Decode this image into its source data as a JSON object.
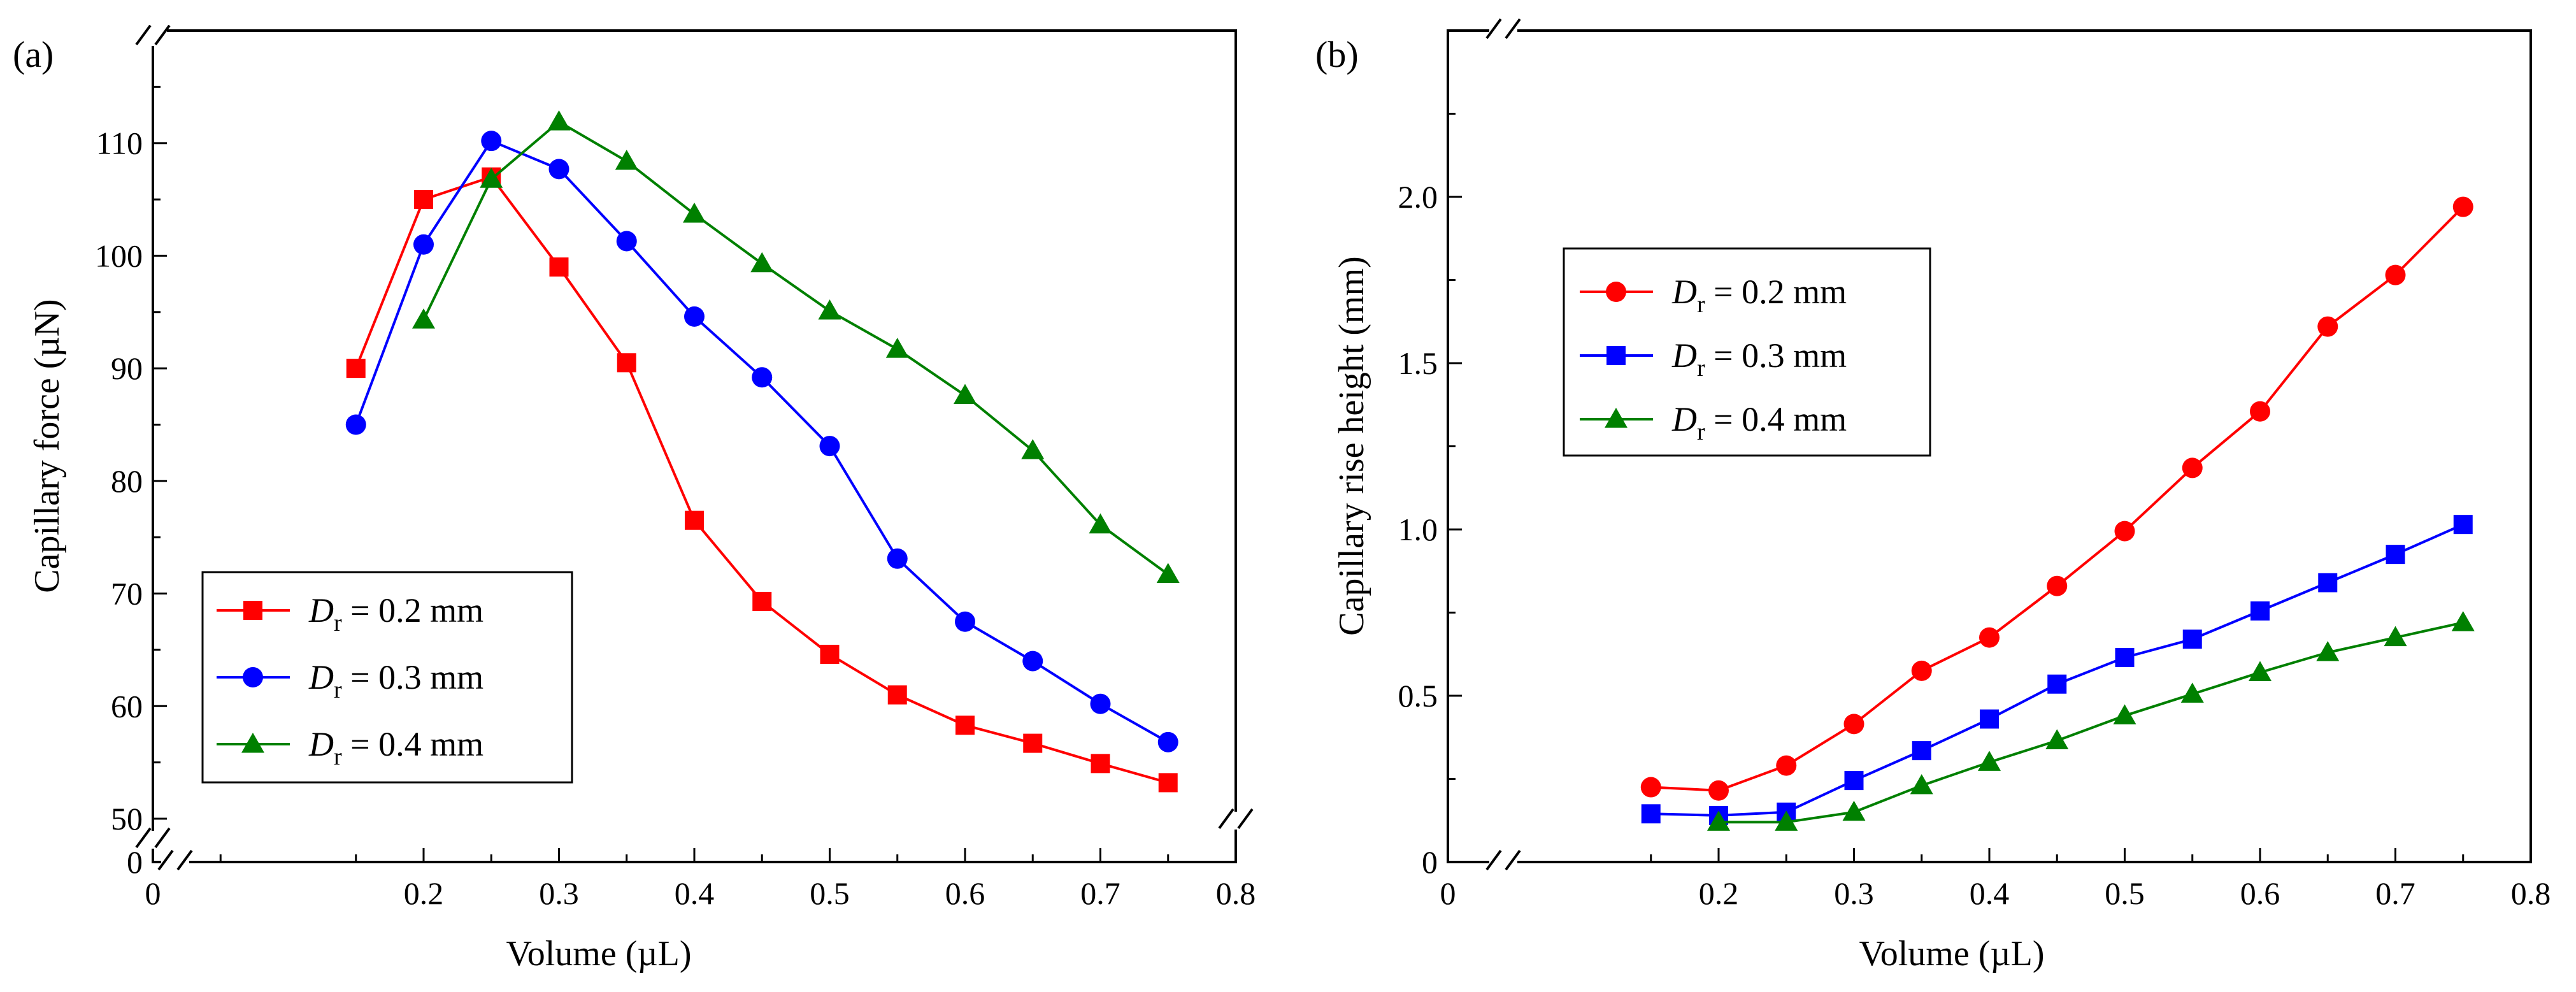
{
  "chart_data": [
    {
      "panel_label": "(a)",
      "type": "line",
      "xlabel": "Volume (µL)",
      "ylabel": "Capillary force (µN)",
      "xlim": [
        0,
        0.8
      ],
      "ylim_broken": {
        "lower_tick": 0,
        "range": [
          50,
          120
        ]
      },
      "x_ticks": [
        0,
        0.2,
        0.3,
        0.4,
        0.5,
        0.6,
        0.7,
        0.8
      ],
      "x_tick_labels": [
        "0",
        "0.2",
        "0.3",
        "0.4",
        "0.5",
        "0.6",
        "0.7",
        "0.8"
      ],
      "y_ticks": [
        0,
        50,
        60,
        70,
        80,
        90,
        100,
        110
      ],
      "y_tick_labels": [
        "0",
        "50",
        "60",
        "70",
        "80",
        "90",
        "100",
        "110"
      ],
      "legend_position": "bottom-left",
      "series": [
        {
          "name": "D_r = 0.2 mm",
          "italic": "D",
          "sub": "r",
          "rest": " = 0.2 mm",
          "color": "#ff0000",
          "marker": "square",
          "x": [
            0.15,
            0.2,
            0.25,
            0.3,
            0.35,
            0.4,
            0.45,
            0.5,
            0.55,
            0.6,
            0.65,
            0.7,
            0.75
          ],
          "y": [
            90.0,
            105.0,
            107.0,
            99.0,
            90.5,
            76.5,
            69.3,
            64.6,
            61.0,
            58.3,
            56.7,
            54.9,
            53.2
          ]
        },
        {
          "name": "D_r = 0.3 mm",
          "italic": "D",
          "sub": "r",
          "rest": " = 0.3 mm",
          "color": "#0000ff",
          "marker": "circle",
          "x": [
            0.15,
            0.2,
            0.25,
            0.3,
            0.35,
            0.4,
            0.45,
            0.5,
            0.55,
            0.6,
            0.65,
            0.7,
            0.75
          ],
          "y": [
            85.0,
            101.0,
            110.2,
            107.7,
            101.3,
            94.6,
            89.2,
            83.1,
            73.1,
            67.5,
            64.0,
            60.2,
            56.8
          ]
        },
        {
          "name": "D_r = 0.4 mm",
          "italic": "D",
          "sub": "r",
          "rest": " = 0.4 mm",
          "color": "#008000",
          "marker": "triangle",
          "x": [
            0.2,
            0.25,
            0.3,
            0.35,
            0.4,
            0.45,
            0.5,
            0.55,
            0.6,
            0.65,
            0.7,
            0.75
          ],
          "y": [
            94.3,
            106.8,
            111.9,
            108.4,
            103.7,
            99.3,
            95.1,
            91.7,
            87.6,
            82.7,
            76.1,
            71.7
          ]
        }
      ]
    },
    {
      "panel_label": "(b)",
      "type": "line",
      "xlabel": "Volume (µL)",
      "ylabel": "Capillary rise height (mm)",
      "xlim": [
        0,
        0.8
      ],
      "ylim": [
        0,
        2.5
      ],
      "x_ticks": [
        0,
        0.2,
        0.3,
        0.4,
        0.5,
        0.6,
        0.7,
        0.8
      ],
      "x_tick_labels": [
        "0",
        "0.2",
        "0.3",
        "0.4",
        "0.5",
        "0.6",
        "0.7",
        "0.8"
      ],
      "y_ticks": [
        0,
        0.5,
        1.0,
        1.5,
        2.0
      ],
      "y_tick_labels": [
        "0",
        "0.5",
        "1.0",
        "1.5",
        "2.0"
      ],
      "legend_position": "top-left",
      "series": [
        {
          "name": "D_r = 0.2 mm",
          "italic": "D",
          "sub": "r",
          "rest": " = 0.2 mm",
          "color": "#ff0000",
          "marker": "circle",
          "x": [
            0.15,
            0.2,
            0.25,
            0.3,
            0.35,
            0.4,
            0.45,
            0.5,
            0.55,
            0.6,
            0.65,
            0.7,
            0.75
          ],
          "y": [
            0.225,
            0.215,
            0.29,
            0.415,
            0.575,
            0.675,
            0.83,
            0.995,
            1.185,
            1.355,
            1.61,
            1.765,
            1.97
          ]
        },
        {
          "name": "D_r = 0.3 mm",
          "italic": "D",
          "sub": "r",
          "rest": " = 0.3 mm",
          "color": "#0000ff",
          "marker": "square",
          "x": [
            0.15,
            0.2,
            0.25,
            0.3,
            0.35,
            0.4,
            0.45,
            0.5,
            0.55,
            0.6,
            0.65,
            0.7,
            0.75
          ],
          "y": [
            0.145,
            0.14,
            0.15,
            0.245,
            0.335,
            0.43,
            0.535,
            0.615,
            0.67,
            0.755,
            0.84,
            0.925,
            1.015
          ]
        },
        {
          "name": "D_r = 0.4 mm",
          "italic": "D",
          "sub": "r",
          "rest": " = 0.4 mm",
          "color": "#008000",
          "marker": "triangle",
          "x": [
            0.2,
            0.25,
            0.3,
            0.35,
            0.4,
            0.45,
            0.5,
            0.55,
            0.6,
            0.65,
            0.7,
            0.75
          ],
          "y": [
            0.12,
            0.12,
            0.15,
            0.23,
            0.3,
            0.365,
            0.44,
            0.505,
            0.57,
            0.63,
            0.675,
            0.72
          ]
        }
      ]
    }
  ]
}
